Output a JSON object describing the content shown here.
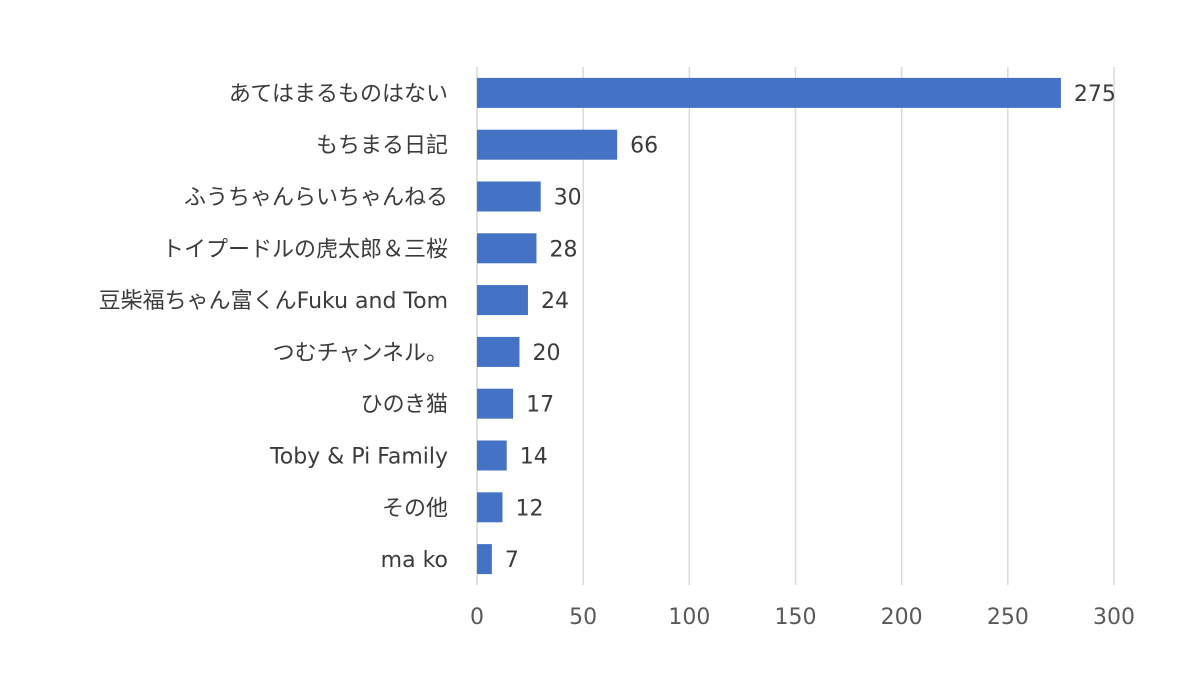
{
  "chart_data": {
    "type": "bar",
    "orientation": "horizontal",
    "categories": [
      "あてはまるものはない",
      "もちまる日記",
      "ふうちゃんらいちゃんねる",
      "トイプードルの虎太郎＆三桜",
      "豆柴福ちゃん富くんFuku and Tom",
      "つむチャンネル。",
      "ひのき猫",
      "Toby & Pi Family",
      "その他",
      "ma ko"
    ],
    "values": [
      275,
      66,
      30,
      28,
      24,
      20,
      17,
      14,
      12,
      7
    ],
    "xlim": [
      0,
      300
    ],
    "xticks": [
      0,
      50,
      100,
      150,
      200,
      250,
      300
    ],
    "grid": true,
    "legend": "none",
    "bar_color": "#4472c4",
    "grid_color": "#d9d9d9",
    "text_color": "#3b3b3b"
  }
}
